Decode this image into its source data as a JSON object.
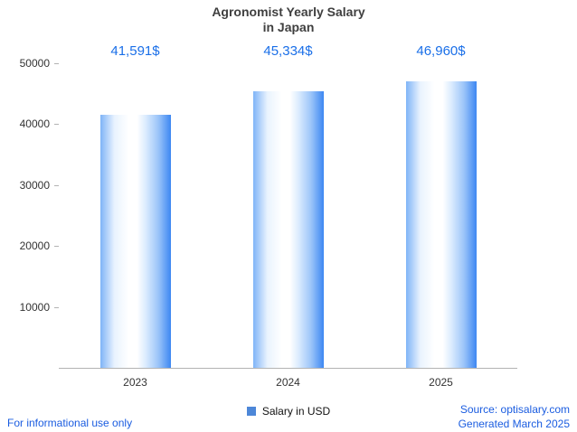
{
  "chart_data": {
    "type": "bar",
    "title": "Agronomist Yearly Salary in Japan",
    "title_lines": [
      "Agronomist Yearly Salary",
      "in Japan"
    ],
    "categories": [
      "2023",
      "2024",
      "2025"
    ],
    "series": [
      {
        "name": "Salary in USD",
        "values": [
          41591,
          45334,
          46960
        ]
      }
    ],
    "value_labels": [
      "41,591$",
      "45,334$",
      "46,960$"
    ],
    "xlabel": "",
    "ylabel": "",
    "ylim": [
      0,
      50000
    ],
    "yticks": [
      10000,
      20000,
      30000,
      40000,
      50000
    ],
    "grid": false,
    "legend_position": "bottom-center"
  },
  "footer": {
    "disclaimer": "For informational use only",
    "source": "Source: optisalary.com",
    "generated": "Generated March 2025"
  },
  "colors": {
    "value_label": "#1a6fe8",
    "link_blue": "#1a5ce0",
    "bar_edge_left": "#7fb4f7",
    "bar_center": "#ffffff",
    "bar_edge_right": "#3d87f2",
    "legend_swatch": "#4d87d8",
    "axis_line": "#b3b3b3"
  }
}
